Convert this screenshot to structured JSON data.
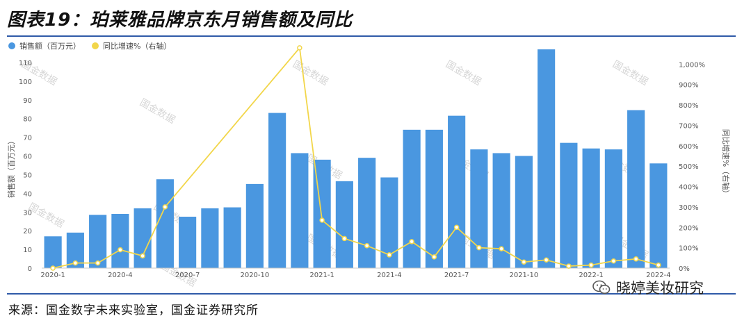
{
  "title": "图表19：珀莱雅品牌京东月销售额及同比",
  "source": "来源：国金数字未来实验室，国金证券研究所",
  "watermark": "国金数据",
  "brand": "晓婷美妆研究",
  "colors": {
    "bar": "#4a97e0",
    "line": "#f2d64a",
    "rule": "#2f5aa8"
  },
  "chart_data": {
    "type": "bar",
    "legend_position": "top-left",
    "grid": false,
    "x": [
      "2020-1",
      "2020-2",
      "2020-3",
      "2020-4",
      "2020-5",
      "2020-6",
      "2020-7",
      "2020-8",
      "2020-9",
      "2020-10",
      "2020-11",
      "2020-12",
      "2021-1",
      "2021-2",
      "2021-3",
      "2021-4",
      "2021-5",
      "2021-6",
      "2021-7",
      "2021-8",
      "2021-9",
      "2021-10",
      "2021-11",
      "2021-12",
      "2022-1",
      "2022-2",
      "2022-3",
      "2022-4"
    ],
    "x_tick_labels": [
      "2020-1",
      "2020-4",
      "2020-7",
      "2020-10",
      "2021-1",
      "2021-4",
      "2021-7",
      "2021-10",
      "2022-1",
      "2022-4"
    ],
    "series": [
      {
        "name": "销售额（百万元）",
        "type": "bar",
        "axis": "left",
        "values": [
          17,
          19,
          28.5,
          29,
          32,
          47.5,
          27.5,
          32,
          32.5,
          45,
          83,
          61.5,
          58,
          46.5,
          59,
          48.5,
          74,
          74,
          81.5,
          63.5,
          61.5,
          60,
          117,
          67,
          64,
          63.5,
          84.5,
          56
        ]
      },
      {
        "name": "同比增速%（右轴）",
        "type": "line",
        "axis": "right",
        "values": [
          0,
          25,
          25,
          90,
          60,
          300,
          null,
          null,
          null,
          null,
          null,
          1080,
          235,
          145,
          110,
          65,
          130,
          55,
          200,
          100,
          95,
          30,
          40,
          10,
          15,
          35,
          45,
          15
        ]
      }
    ],
    "y_left": {
      "label": "销售额（百万元）",
      "range": [
        0,
        120
      ],
      "ticks": [
        "0",
        "10",
        "20",
        "30",
        "40",
        "50",
        "60",
        "70",
        "80",
        "90",
        "100",
        "110"
      ]
    },
    "y_right": {
      "label": "同比增速%（右轴）",
      "range": [
        0,
        1100
      ],
      "ticks": [
        "0%",
        "100%",
        "200%",
        "300%",
        "400%",
        "500%",
        "600%",
        "700%",
        "800%",
        "900%",
        "1,000%"
      ]
    }
  }
}
